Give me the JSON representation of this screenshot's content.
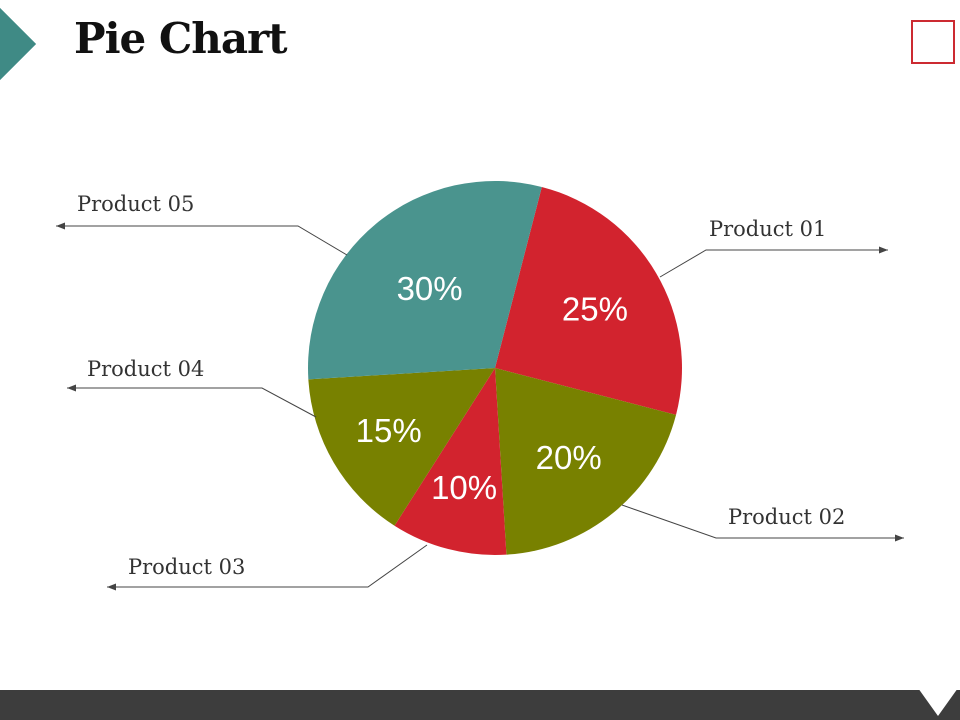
{
  "slide": {
    "title": "Pie Chart"
  },
  "chart_data": {
    "type": "pie",
    "slices": [
      {
        "name": "Product 01",
        "value": 25,
        "label": "25%",
        "color": "#d2232e"
      },
      {
        "name": "Product 02",
        "value": 20,
        "label": "20%",
        "color": "#788100"
      },
      {
        "name": "Product 03",
        "value": 10,
        "label": "10%",
        "color": "#d2232e"
      },
      {
        "name": "Product 04",
        "value": 15,
        "label": "15%",
        "color": "#788100"
      },
      {
        "name": "Product 05",
        "value": 30,
        "label": "30%",
        "color": "#4a948e"
      }
    ]
  },
  "colors": {
    "accent_teal": "#3f8a85",
    "accent_red": "#cc2a31",
    "footer": "#3d3d3d"
  }
}
